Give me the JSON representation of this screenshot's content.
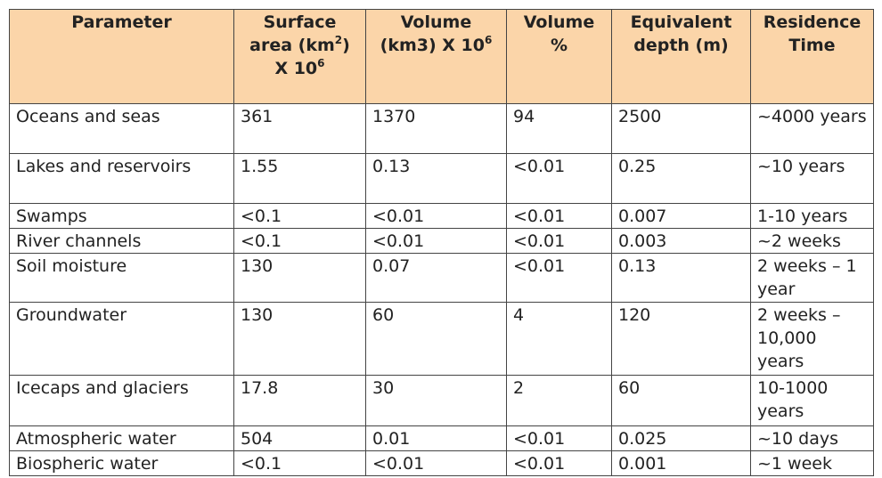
{
  "table": {
    "header": [
      [
        "Parameter"
      ],
      [
        "Surface area (km",
        "2",
        ") X 10",
        "6"
      ],
      [
        "Volume (km3) X 10",
        "6"
      ],
      [
        "Volume %"
      ],
      [
        "Equivalent depth (m)"
      ],
      [
        "Residence Time"
      ]
    ],
    "rows": [
      [
        "Oceans and seas",
        "361",
        "1370",
        "94",
        "2500",
        "~4000 years"
      ],
      [
        "Lakes and reservoirs",
        "1.55",
        "0.13",
        "<0.01",
        "0.25",
        "~10 years"
      ],
      [
        "Swamps",
        "<0.1",
        "<0.01",
        "<0.01",
        "0.007",
        "1-10 years"
      ],
      [
        "River channels",
        "<0.1",
        "<0.01",
        "<0.01",
        "0.003",
        "~2 weeks"
      ],
      [
        "Soil moisture",
        "130",
        "0.07",
        "<0.01",
        "0.13",
        "2 weeks – 1 year"
      ],
      [
        "Groundwater",
        "130",
        "60",
        "4",
        "120",
        "2 weeks – 10,000 years"
      ],
      [
        "Icecaps and glaciers",
        "17.8",
        "30",
        "2",
        "60",
        "10-1000 years"
      ],
      [
        "Atmospheric water",
        "504",
        "0.01",
        "<0.01",
        "0.025",
        "~10 days"
      ],
      [
        "Biospheric water",
        "<0.1",
        "<0.01",
        "<0.01",
        "0.001",
        "~1 week"
      ]
    ]
  }
}
